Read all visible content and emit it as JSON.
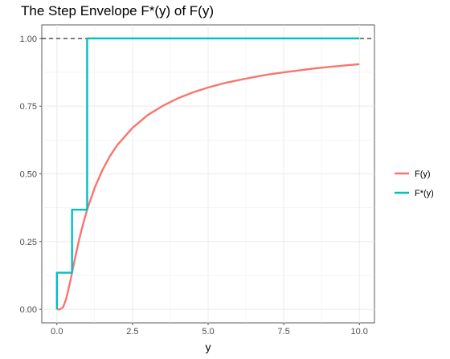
{
  "chart_data": {
    "type": "line",
    "title": "The Step Envelope F*(y) of F(y)",
    "xlabel": "y",
    "ylabel": "",
    "xlim": [
      -0.5,
      10.5
    ],
    "ylim": [
      -0.05,
      1.05
    ],
    "x_ticks": [
      0.0,
      2.5,
      5.0,
      7.5,
      10.0
    ],
    "x_tick_labels": [
      "0.0",
      "2.5",
      "5.0",
      "7.5",
      "10.0"
    ],
    "y_ticks": [
      0.0,
      0.25,
      0.5,
      0.75,
      1.0
    ],
    "y_tick_labels": [
      "0.00",
      "0.25",
      "0.50",
      "0.75",
      "1.00"
    ],
    "grid": true,
    "reference_line": {
      "y": 1.0,
      "style": "dashed",
      "color": "#000000"
    },
    "legend": {
      "placement": "right"
    },
    "series": [
      {
        "name": "F(y)",
        "color": "#F8766D",
        "x": [
          0.0,
          0.1,
          0.2,
          0.3,
          0.4,
          0.5,
          0.6,
          0.7,
          0.8,
          0.9,
          1.0,
          1.25,
          1.5,
          1.75,
          2.0,
          2.5,
          3.0,
          3.5,
          4.0,
          4.5,
          5.0,
          5.5,
          6.0,
          6.5,
          7.0,
          7.5,
          8.0,
          8.5,
          9.0,
          9.5,
          10.0
        ],
        "values": [
          0.0,
          0.0,
          0.007,
          0.036,
          0.082,
          0.135,
          0.189,
          0.24,
          0.287,
          0.329,
          0.368,
          0.449,
          0.513,
          0.565,
          0.607,
          0.67,
          0.717,
          0.751,
          0.779,
          0.801,
          0.819,
          0.834,
          0.846,
          0.857,
          0.867,
          0.875,
          0.882,
          0.889,
          0.895,
          0.9,
          0.905
        ]
      },
      {
        "name": "F*(y)",
        "color": "#00BFC4",
        "step": true,
        "x": [
          0.0,
          0.0,
          0.5,
          0.5,
          1.0,
          1.0,
          10.0
        ],
        "values": [
          0.0,
          0.135,
          0.135,
          0.368,
          0.368,
          1.0,
          1.0
        ]
      }
    ]
  }
}
